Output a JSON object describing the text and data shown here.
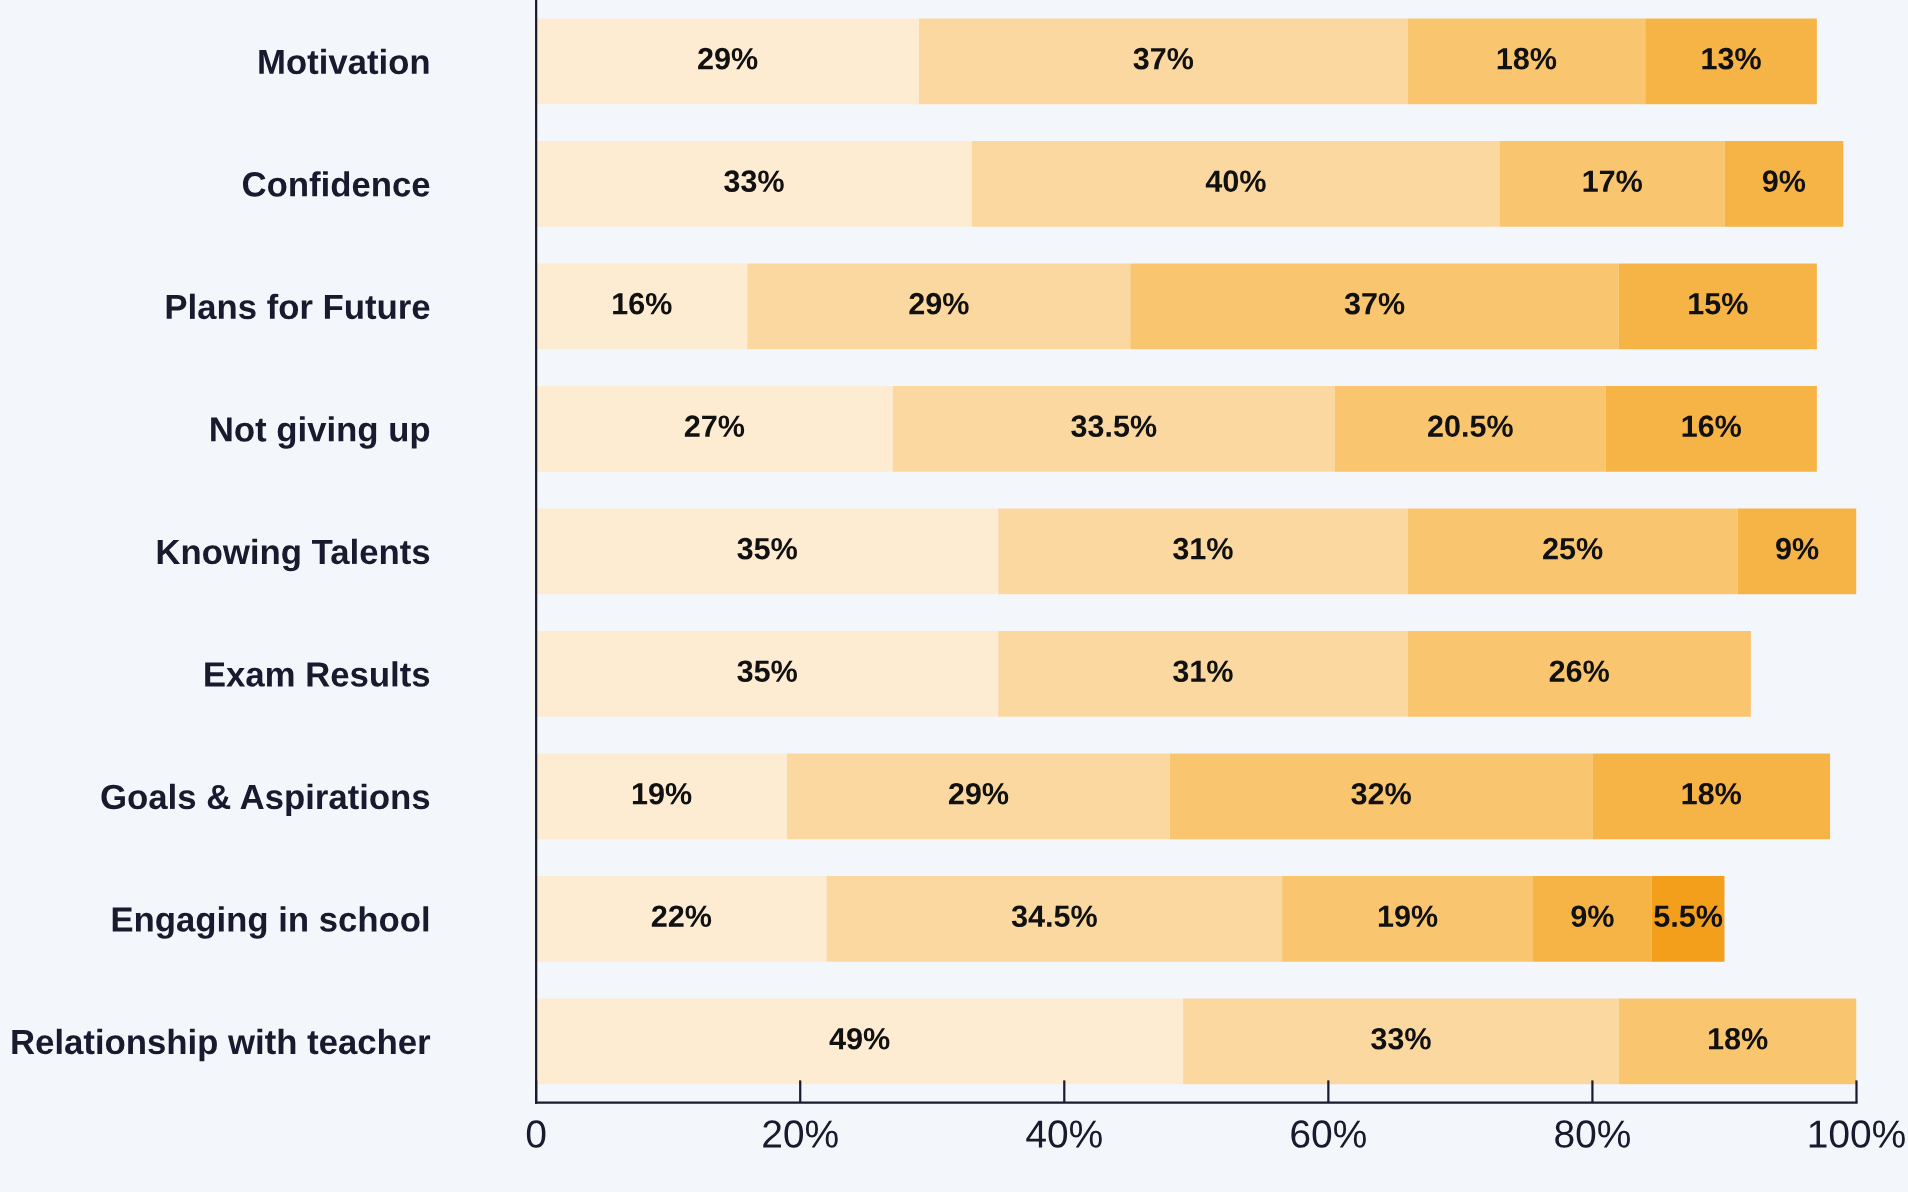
{
  "chart_data": {
    "type": "bar",
    "orientation": "horizontal",
    "stacked": true,
    "categories": [
      "Motivation",
      "Confidence",
      "Plans for Future",
      "Not giving up",
      "Knowing Talents",
      "Exam Results",
      "Goals & Aspirations",
      "Engaging in school",
      "Relationship with teacher"
    ],
    "series": [
      {
        "color": "#fdebd2",
        "values": [
          29,
          33,
          16,
          27,
          35,
          35,
          19,
          22,
          49
        ],
        "value_labels": [
          "29%",
          "33%",
          "16%",
          "27%",
          "35%",
          "35%",
          "19%",
          "22%",
          "49%"
        ]
      },
      {
        "color": "#fbd89f",
        "values": [
          37,
          40,
          29,
          33.5,
          31,
          31,
          29,
          34.5,
          33
        ],
        "value_labels": [
          "37%",
          "40%",
          "29%",
          "33.5%",
          "31%",
          "31%",
          "29%",
          "34.5%",
          "33%"
        ]
      },
      {
        "color": "#f9c56e",
        "values": [
          18,
          17,
          37,
          20.5,
          25,
          26,
          32,
          19,
          18
        ],
        "value_labels": [
          "18%",
          "17%",
          "37%",
          "20.5%",
          "25%",
          "26%",
          "32%",
          "19%",
          "18%"
        ]
      },
      {
        "color": "#f7b446",
        "values": [
          13,
          9,
          15,
          16,
          9,
          null,
          18,
          9,
          null
        ],
        "value_labels": [
          "13%",
          "9%",
          "15%",
          "16%",
          "9%",
          null,
          "18%",
          "9%",
          null
        ]
      },
      {
        "color": "#f39f1c",
        "values": [
          null,
          null,
          null,
          null,
          null,
          null,
          null,
          5.5,
          null
        ],
        "value_labels": [
          null,
          null,
          null,
          null,
          null,
          null,
          null,
          "5.5%",
          null
        ]
      }
    ],
    "xlim": [
      0,
      100
    ],
    "xticks": [
      {
        "value": 0,
        "label": "0"
      },
      {
        "value": 20,
        "label": "20%"
      },
      {
        "value": 40,
        "label": "40%"
      },
      {
        "value": 60,
        "label": "60%"
      },
      {
        "value": 80,
        "label": "80%"
      },
      {
        "value": 100,
        "label": "100%"
      }
    ],
    "grid": false
  }
}
